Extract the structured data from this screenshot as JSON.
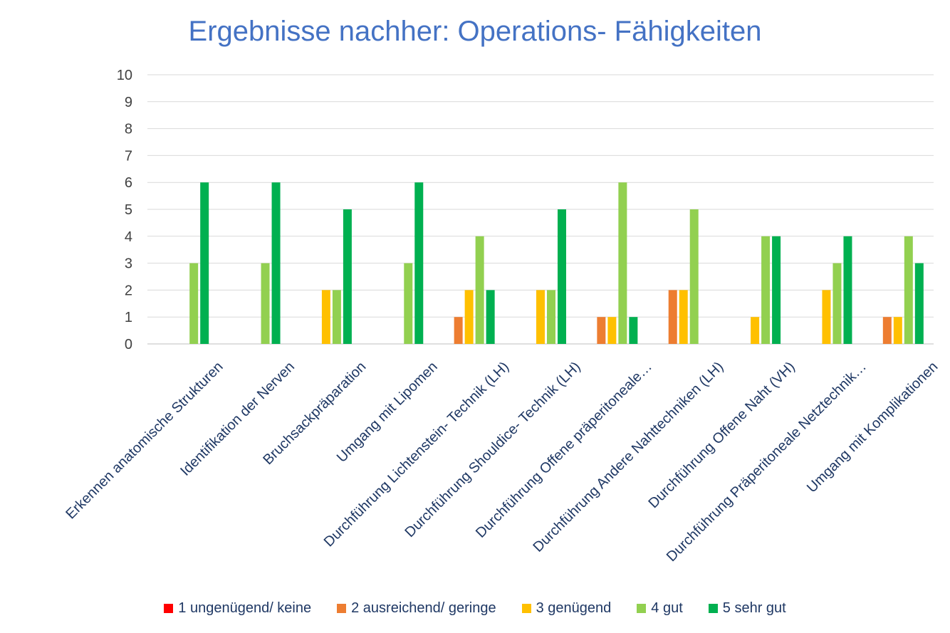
{
  "chart_data": {
    "type": "bar",
    "title": "Ergebnisse nachher: Operations- Fähigkeiten",
    "xlabel": "",
    "ylabel": "",
    "ylim": [
      0,
      10
    ],
    "yticks": [
      "0",
      "1",
      "2",
      "3",
      "4",
      "5",
      "6",
      "7",
      "8",
      "9",
      "10"
    ],
    "grid": true,
    "legend_position": "bottom",
    "categories": [
      "Erkennen anatomische Strukturen",
      "Identifikation der Nerven",
      "Bruchsackpräparation",
      "Umgang mit Lipomen",
      "Durchführung Lichtenstein- Technik (LH)",
      "Durchführung Shouldice- Technik (LH)",
      "Durchführung Offene präperitoneale…",
      "Durchführung Andere Nahttechniken (LH)",
      "Durchführung Offene Naht (VH)",
      "Durchführung Präperitoneale Netztechnik…",
      "Umgang mit Komplikationen"
    ],
    "series": [
      {
        "name": "1 ungenügend/ keine",
        "color": "#ff0000",
        "values": [
          0,
          0,
          0,
          0,
          0,
          0,
          0,
          0,
          0,
          0,
          0
        ]
      },
      {
        "name": "2 ausreichend/ geringe",
        "color": "#ed7d31",
        "values": [
          0,
          0,
          0,
          0,
          1,
          0,
          1,
          2,
          0,
          0,
          1
        ]
      },
      {
        "name": "3 genügend",
        "color": "#ffc000",
        "values": [
          0,
          0,
          2,
          0,
          2,
          2,
          1,
          2,
          1,
          2,
          1
        ]
      },
      {
        "name": "4 gut",
        "color": "#92d050",
        "values": [
          3,
          3,
          2,
          3,
          4,
          2,
          6,
          5,
          4,
          3,
          4
        ]
      },
      {
        "name": "5 sehr gut",
        "color": "#00b050",
        "values": [
          6,
          6,
          5,
          6,
          2,
          5,
          1,
          0,
          4,
          4,
          3
        ]
      }
    ]
  }
}
